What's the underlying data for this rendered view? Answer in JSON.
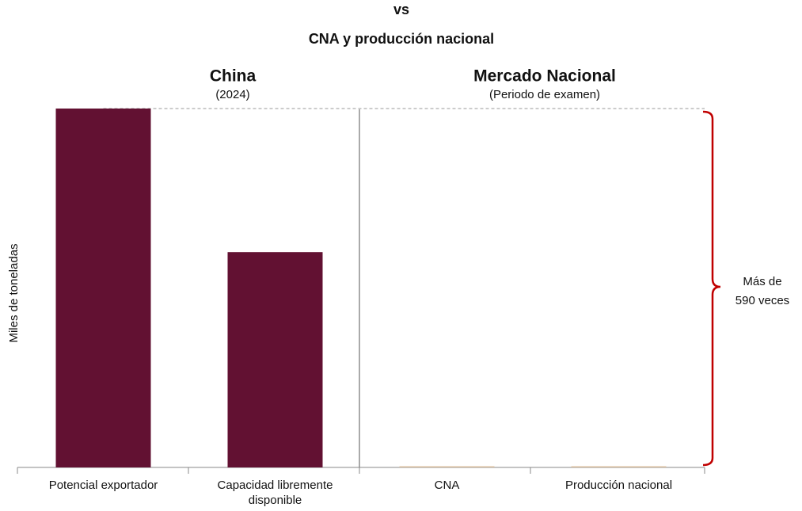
{
  "chart_data": {
    "type": "bar",
    "title_lines": [
      "vs",
      "CNA y producción nacional"
    ],
    "groups": [
      {
        "name": "China",
        "period": "(2024)"
      },
      {
        "name": "Mercado Nacional",
        "period": "(Periodo de examen)"
      }
    ],
    "y_label": "Miles de toneladas",
    "categories": [
      "Potencial exportador",
      "Capacidad libremente disponible",
      "CNA",
      "Producción nacional"
    ],
    "values": [
      100,
      60,
      0.17,
      0.15
    ],
    "colors": [
      "#621132",
      "#621132",
      "#d9bf9f",
      "#d9bf9f"
    ],
    "ylim": [
      0,
      100
    ],
    "annotation_lines": [
      "Más de",
      "590 veces"
    ]
  }
}
